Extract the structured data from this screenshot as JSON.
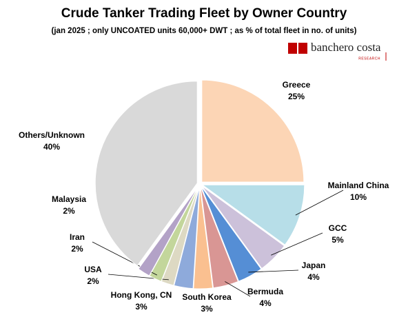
{
  "chart_data": {
    "type": "pie",
    "title": "Crude Tanker Trading Fleet by Owner Country",
    "subtitle": "(jan 2025 ; only UNCOATED units 60,000+ DWT ; as % of total fleet in no. of units)",
    "categories": [
      "Greece",
      "Mainland China",
      "GCC",
      "Japan",
      "Bermuda",
      "South Korea",
      "Hong Kong, CN",
      "USA",
      "Iran",
      "Malaysia",
      "Others/Unknown"
    ],
    "values": [
      25,
      10,
      5,
      4,
      4,
      3,
      3,
      2,
      2,
      2,
      40
    ],
    "value_labels": [
      "25%",
      "10%",
      "5%",
      "4%",
      "4%",
      "3%",
      "3%",
      "2%",
      "2%",
      "2%",
      "40%"
    ],
    "colors": [
      "#fcd5b5",
      "#b7dee8",
      "#ccc1da",
      "#558ed5",
      "#d99694",
      "#fac090",
      "#8eaadb",
      "#ddd9c3",
      "#c3d69b",
      "#b3a2c7",
      "#d9d9d9"
    ]
  },
  "logo": {
    "name": "banchero costa",
    "sub": "RESEARCH"
  }
}
